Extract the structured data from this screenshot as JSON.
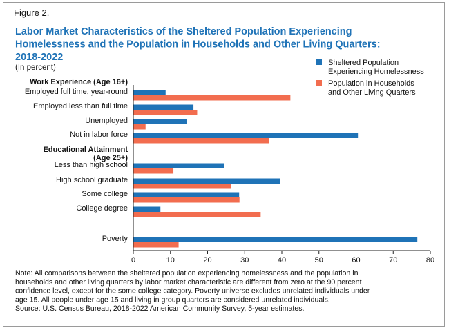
{
  "figure_label": "Figure 2.",
  "chart_data": {
    "type": "bar",
    "orientation": "horizontal",
    "title_lines": [
      "Labor Market Characteristics of the Sheltered Population Experiencing",
      "Homelessness and the Population in Households and Other Living Quarters:",
      "2018-2022"
    ],
    "subtitle": "(In percent)",
    "xlim": [
      0,
      80
    ],
    "x_ticks": [
      0,
      10,
      20,
      30,
      40,
      50,
      60,
      70,
      80
    ],
    "grid": false,
    "legend_position": "top-right",
    "section_headers": [
      {
        "lines": [
          "Work Experience (Age 16+)"
        ]
      },
      {
        "lines": [
          "Educational Attainment",
          "(Age 25+)"
        ]
      }
    ],
    "categories": [
      "Employed full time, year-round",
      "Employed less than full time",
      "Unemployed",
      "Not in labor force",
      "Less than high school",
      "High school graduate",
      "Some college",
      "College degree",
      "Poverty"
    ],
    "series": [
      {
        "name_lines": [
          "Sheltered Population",
          "Experiencing Homelessness"
        ],
        "color": "#1f73b7",
        "values": [
          8.7,
          16.2,
          14.5,
          60.5,
          24.4,
          39.5,
          28.5,
          7.3,
          76.5
        ]
      },
      {
        "name_lines": [
          "Population in Households",
          "and Other Living Quarters"
        ],
        "color": "#f26d4f",
        "values": [
          42.3,
          17.2,
          3.3,
          36.5,
          10.8,
          26.4,
          28.6,
          34.3,
          12.2
        ]
      }
    ]
  },
  "notes": [
    "Note: All comparisons between the sheltered population experiencing homelessness and the population in",
    "households and other living quarters by labor market characteristic are different from zero at the 90 percent",
    "confidence level, except for the some college category. Poverty universe excludes unrelated individuals under",
    "age 15. All people under age 15 and living in group quarters are considered unrelated individuals.",
    "Source: U.S. Census Bureau, 2018-2022 American Community Survey, 5-year estimates."
  ]
}
